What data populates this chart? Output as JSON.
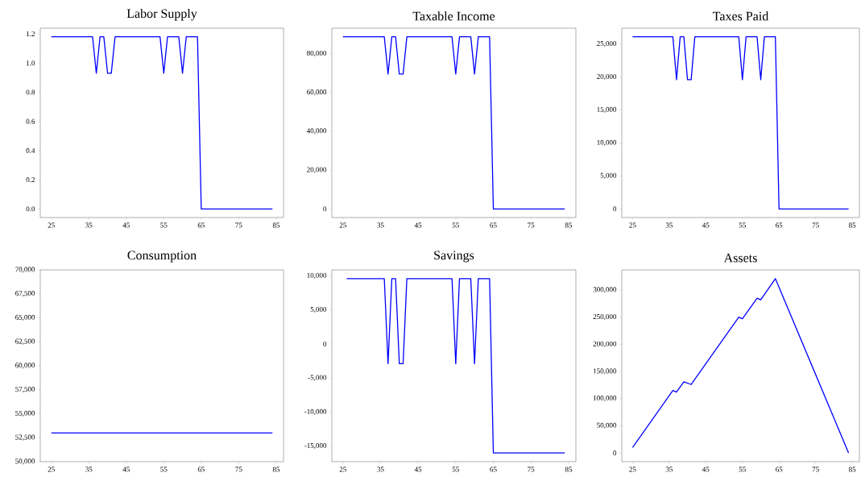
{
  "chart_data": [
    {
      "type": "line",
      "title": "Labor Supply",
      "color": "#0000ff",
      "xlim": [
        22.05,
        86.95
      ],
      "ylim": [
        -0.059,
        1.239
      ],
      "xticks": [
        25,
        35,
        45,
        55,
        65,
        75,
        85
      ],
      "yticks": [
        {
          "value": 0,
          "label": "0.0"
        },
        {
          "value": 0.2,
          "label": "0.2"
        },
        {
          "value": 0.4,
          "label": "0.4"
        },
        {
          "value": 0.6,
          "label": "0.6"
        },
        {
          "value": 0.8,
          "label": "0.8"
        },
        {
          "value": 1,
          "label": "1.0"
        },
        {
          "value": 1.2,
          "label": "1.2"
        }
      ],
      "x": [
        25,
        36,
        37,
        38,
        39,
        40,
        41,
        42,
        54,
        55,
        56,
        59,
        60,
        61,
        64,
        65,
        84
      ],
      "values": [
        1.18,
        1.18,
        0.93,
        1.18,
        1.18,
        0.93,
        0.93,
        1.18,
        1.18,
        0.93,
        1.18,
        1.18,
        0.93,
        1.18,
        1.18,
        0,
        0
      ]
    },
    {
      "type": "line",
      "title": "Taxable Income",
      "color": "#0000ff",
      "xlim": [
        22.05,
        86.95
      ],
      "ylim": [
        -4435,
        93135
      ],
      "xticks": [
        25,
        35,
        45,
        55,
        65,
        75,
        85
      ],
      "yticks": [
        0,
        {
          "value": 20000,
          "label": "20,000"
        },
        {
          "value": 40000,
          "label": "40,000"
        },
        {
          "value": 60000,
          "label": "60,000"
        },
        {
          "value": 80000,
          "label": "80,000"
        }
      ],
      "x": [
        25,
        36,
        37,
        38,
        39,
        40,
        41,
        42,
        54,
        55,
        56,
        59,
        60,
        61,
        64,
        65,
        84
      ],
      "values": [
        88700,
        88700,
        69500,
        88700,
        88700,
        69500,
        69500,
        88700,
        88700,
        69500,
        88700,
        88700,
        69500,
        88700,
        88700,
        0,
        0
      ]
    },
    {
      "type": "line",
      "title": "Taxes  Paid",
      "color": "#0000ff",
      "xlim": [
        22.05,
        86.95
      ],
      "ylim": [
        -1305,
        27405
      ],
      "xticks": [
        25,
        35,
        45,
        55,
        65,
        75,
        85
      ],
      "yticks": [
        0,
        {
          "value": 5000,
          "label": "5,000"
        },
        {
          "value": 10000,
          "label": "10,000"
        },
        {
          "value": 15000,
          "label": "15,000"
        },
        {
          "value": 20000,
          "label": "20,000"
        },
        {
          "value": 25000,
          "label": "25,000"
        }
      ],
      "x": [
        25,
        36,
        37,
        38,
        39,
        40,
        41,
        42,
        54,
        55,
        56,
        59,
        60,
        61,
        64,
        65,
        84
      ],
      "values": [
        26100,
        26100,
        19600,
        26100,
        26100,
        19600,
        19600,
        26100,
        26100,
        19600,
        26100,
        26100,
        19600,
        26100,
        26100,
        0,
        0
      ]
    },
    {
      "type": "line",
      "title": "Consumption",
      "color": "#0000ff",
      "xlim": [
        22.05,
        86.95
      ],
      "ylim": [
        50000,
        70000
      ],
      "xticks": [
        25,
        35,
        45,
        55,
        65,
        75,
        85
      ],
      "yticks": [
        {
          "value": 50000,
          "label": "50,000"
        },
        {
          "value": 52500,
          "label": "52,500"
        },
        {
          "value": 55000,
          "label": "55,000"
        },
        {
          "value": 57500,
          "label": "57,500"
        },
        {
          "value": 60000,
          "label": "60,000"
        },
        {
          "value": 62500,
          "label": "62,500"
        },
        {
          "value": 65000,
          "label": "65,000"
        },
        {
          "value": 67500,
          "label": "67,500"
        },
        {
          "value": 70000,
          "label": "70,000"
        }
      ],
      "x": [
        25,
        84
      ],
      "values": [
        53000,
        53000
      ]
    },
    {
      "type": "line",
      "title": "Savings",
      "color": "#0000ff",
      "xlim": [
        22.05,
        86.95
      ],
      "ylim": [
        -17280,
        10880
      ],
      "xticks": [
        25,
        35,
        45,
        55,
        65,
        75,
        85
      ],
      "yticks": [
        {
          "value": -15000,
          "label": "-15,000"
        },
        {
          "value": -10000,
          "label": "-10,000"
        },
        {
          "value": -5000,
          "label": "-5,000"
        },
        0,
        {
          "value": 5000,
          "label": "5,000"
        },
        {
          "value": 10000,
          "label": "10,000"
        }
      ],
      "x": [
        26,
        36,
        37,
        38,
        39,
        40,
        41,
        42,
        54,
        55,
        56,
        59,
        60,
        61,
        64,
        65,
        84
      ],
      "values": [
        9600,
        9600,
        -2900,
        9600,
        9600,
        -2900,
        -2900,
        9600,
        9600,
        -2900,
        9600,
        9600,
        -2900,
        9600,
        9600,
        -16000,
        -16000
      ]
    },
    {
      "type": "line",
      "title": "Assets",
      "color": "#0000ff",
      "xlim": [
        22.05,
        86.95
      ],
      "ylim": [
        -16050,
        337050
      ],
      "xticks": [
        25,
        35,
        45,
        55,
        65,
        75,
        85
      ],
      "yticks": [
        0,
        {
          "value": 50000,
          "label": "50,000"
        },
        {
          "value": 100000,
          "label": "100,000"
        },
        {
          "value": 150000,
          "label": "150,000"
        },
        {
          "value": 200000,
          "label": "200,000"
        },
        {
          "value": 250000,
          "label": "250,000"
        },
        {
          "value": 300000,
          "label": "300,000"
        }
      ],
      "x": [
        25,
        36,
        37,
        39,
        41,
        54,
        55,
        59,
        60,
        64,
        84
      ],
      "values": [
        10000,
        115000,
        112000,
        131000,
        126000,
        250000,
        247000,
        285000,
        282000,
        321000,
        0
      ]
    }
  ]
}
